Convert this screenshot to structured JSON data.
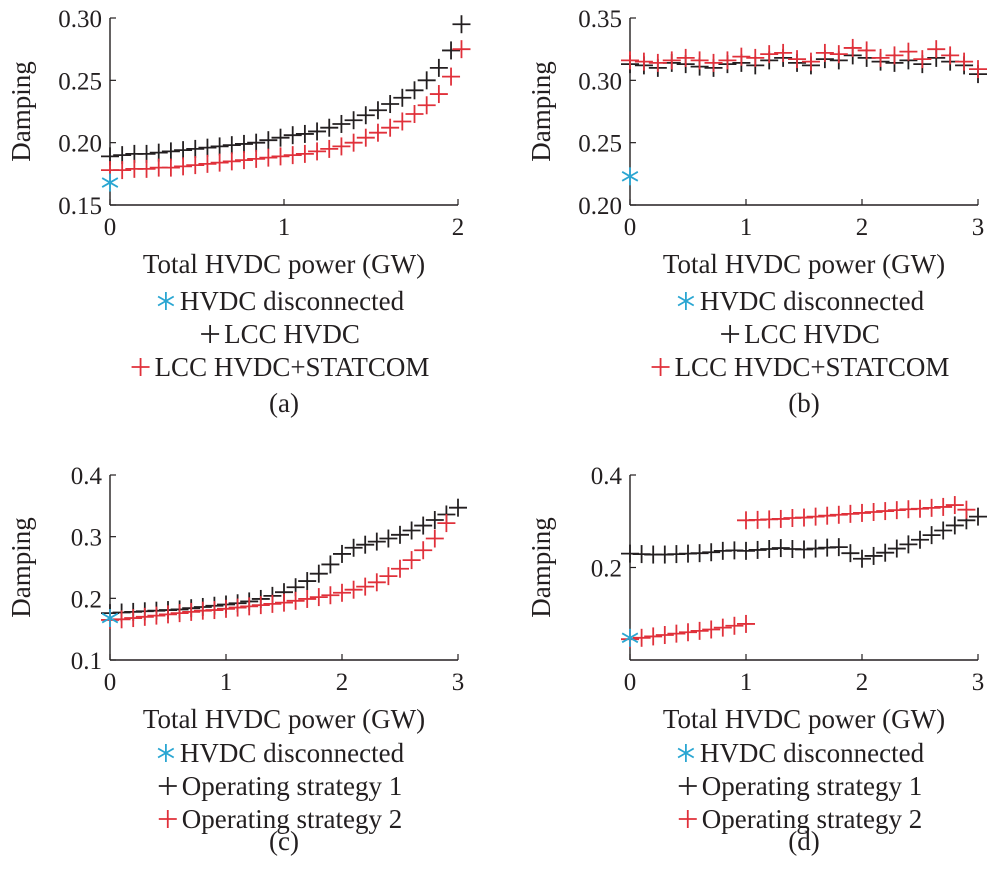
{
  "colors": {
    "black": "#231f20",
    "red": "#e0303a",
    "cyan": "#2aa6d2"
  },
  "chart_data": [
    {
      "panel": "a",
      "type": "scatter",
      "caption": "(a)",
      "xlabel": "Total HVDC power (GW)",
      "ylabel": "Damping",
      "xlim": [
        0,
        2
      ],
      "ylim": [
        0.15,
        0.3
      ],
      "xticks": [
        0,
        1,
        2
      ],
      "xtick_labels": [
        "0",
        "1",
        "2"
      ],
      "yticks": [
        0.15,
        0.2,
        0.25,
        0.3
      ],
      "ytick_labels": [
        "0.15",
        "0.20",
        "0.25",
        "0.30"
      ],
      "series": [
        {
          "name": "HVDC disconnected",
          "color": "cyan",
          "marker": "asterisk",
          "x": [
            0
          ],
          "y": [
            0.168
          ]
        },
        {
          "name": "LCC HVDC",
          "color": "black",
          "marker": "plus",
          "x": [
            0.0,
            0.07,
            0.14,
            0.21,
            0.28,
            0.35,
            0.42,
            0.49,
            0.56,
            0.63,
            0.7,
            0.77,
            0.84,
            0.91,
            0.98,
            1.05,
            1.12,
            1.19,
            1.26,
            1.33,
            1.4,
            1.47,
            1.54,
            1.61,
            1.68,
            1.75,
            1.82,
            1.89,
            1.96,
            2.02
          ],
          "y": [
            0.189,
            0.19,
            0.191,
            0.191,
            0.192,
            0.193,
            0.194,
            0.195,
            0.196,
            0.197,
            0.198,
            0.199,
            0.2,
            0.202,
            0.204,
            0.206,
            0.207,
            0.209,
            0.212,
            0.215,
            0.218,
            0.222,
            0.226,
            0.231,
            0.236,
            0.242,
            0.25,
            0.26,
            0.274,
            0.295
          ]
        },
        {
          "name": "LCC HVDC+STATCOM",
          "color": "red",
          "marker": "plus",
          "x": [
            0.0,
            0.07,
            0.14,
            0.21,
            0.28,
            0.35,
            0.42,
            0.49,
            0.56,
            0.63,
            0.7,
            0.77,
            0.84,
            0.91,
            0.98,
            1.05,
            1.12,
            1.19,
            1.26,
            1.33,
            1.4,
            1.47,
            1.54,
            1.61,
            1.68,
            1.75,
            1.82,
            1.89,
            1.96,
            2.02
          ],
          "y": [
            0.178,
            0.178,
            0.179,
            0.179,
            0.18,
            0.18,
            0.181,
            0.182,
            0.183,
            0.184,
            0.185,
            0.186,
            0.187,
            0.188,
            0.189,
            0.19,
            0.191,
            0.193,
            0.195,
            0.197,
            0.2,
            0.204,
            0.208,
            0.212,
            0.217,
            0.223,
            0.23,
            0.239,
            0.253,
            0.275
          ]
        }
      ],
      "legend": [
        "HVDC disconnected",
        "LCC HVDC",
        "LCC HVDC+STATCOM"
      ]
    },
    {
      "panel": "b",
      "type": "scatter",
      "caption": "(b)",
      "xlabel": "Total HVDC power (GW)",
      "ylabel": "Damping",
      "xlim": [
        0,
        3
      ],
      "ylim": [
        0.2,
        0.35
      ],
      "xticks": [
        0,
        1,
        2,
        3
      ],
      "xtick_labels": [
        "0",
        "1",
        "2",
        "3"
      ],
      "yticks": [
        0.2,
        0.25,
        0.3,
        0.35
      ],
      "ytick_labels": [
        "0.20",
        "0.25",
        "0.30",
        "0.35"
      ],
      "series": [
        {
          "name": "HVDC disconnected",
          "color": "cyan",
          "marker": "asterisk",
          "x": [
            0
          ],
          "y": [
            0.223
          ]
        },
        {
          "name": "LCC HVDC",
          "color": "black",
          "marker": "plus",
          "x": [
            0.0,
            0.12,
            0.24,
            0.36,
            0.48,
            0.6,
            0.72,
            0.84,
            0.96,
            1.08,
            1.2,
            1.32,
            1.44,
            1.56,
            1.68,
            1.8,
            1.92,
            2.04,
            2.16,
            2.28,
            2.4,
            2.52,
            2.64,
            2.76,
            2.88,
            3.0
          ],
          "y": [
            0.313,
            0.312,
            0.31,
            0.314,
            0.313,
            0.311,
            0.31,
            0.313,
            0.314,
            0.312,
            0.316,
            0.318,
            0.314,
            0.312,
            0.317,
            0.316,
            0.32,
            0.318,
            0.315,
            0.314,
            0.316,
            0.313,
            0.318,
            0.315,
            0.312,
            0.305
          ]
        },
        {
          "name": "LCC HVDC+STATCOM",
          "color": "red",
          "marker": "plus",
          "x": [
            0.0,
            0.12,
            0.24,
            0.36,
            0.48,
            0.6,
            0.72,
            0.84,
            0.96,
            1.08,
            1.2,
            1.32,
            1.44,
            1.56,
            1.68,
            1.8,
            1.92,
            2.04,
            2.16,
            2.28,
            2.4,
            2.52,
            2.64,
            2.76,
            2.88,
            3.0
          ],
          "y": [
            0.316,
            0.315,
            0.314,
            0.316,
            0.318,
            0.316,
            0.314,
            0.316,
            0.319,
            0.318,
            0.321,
            0.322,
            0.317,
            0.315,
            0.322,
            0.321,
            0.326,
            0.324,
            0.318,
            0.32,
            0.323,
            0.317,
            0.325,
            0.32,
            0.315,
            0.309
          ]
        }
      ],
      "legend": [
        "HVDC disconnected",
        "LCC HVDC",
        "LCC HVDC+STATCOM"
      ]
    },
    {
      "panel": "c",
      "type": "scatter",
      "caption": "(c)",
      "xlabel": "Total HVDC power (GW)",
      "ylabel": "Damping",
      "xlim": [
        0,
        3
      ],
      "ylim": [
        0.1,
        0.4
      ],
      "xticks": [
        0,
        1,
        2,
        3
      ],
      "xtick_labels": [
        "0",
        "1",
        "2",
        "3"
      ],
      "yticks": [
        0.1,
        0.2,
        0.3,
        0.4
      ],
      "ytick_labels": [
        "0.1",
        "0.2",
        "0.3",
        "0.4"
      ],
      "series": [
        {
          "name": "HVDC disconnected",
          "color": "cyan",
          "marker": "asterisk",
          "x": [
            0
          ],
          "y": [
            0.168
          ]
        },
        {
          "name": "Operating strategy 1",
          "color": "black",
          "marker": "plus",
          "x": [
            0.0,
            0.1,
            0.2,
            0.3,
            0.4,
            0.5,
            0.6,
            0.7,
            0.8,
            0.9,
            1.0,
            1.1,
            1.2,
            1.3,
            1.4,
            1.5,
            1.6,
            1.7,
            1.8,
            1.9,
            2.0,
            2.1,
            2.2,
            2.3,
            2.4,
            2.5,
            2.6,
            2.7,
            2.8,
            2.9,
            3.0
          ],
          "y": [
            0.176,
            0.177,
            0.178,
            0.179,
            0.18,
            0.181,
            0.182,
            0.184,
            0.186,
            0.188,
            0.19,
            0.192,
            0.195,
            0.199,
            0.204,
            0.21,
            0.218,
            0.228,
            0.24,
            0.255,
            0.272,
            0.282,
            0.287,
            0.292,
            0.297,
            0.303,
            0.31,
            0.318,
            0.327,
            0.336,
            0.347
          ]
        },
        {
          "name": "Operating strategy 2",
          "color": "red",
          "marker": "plus",
          "x": [
            0.0,
            0.1,
            0.2,
            0.3,
            0.4,
            0.5,
            0.6,
            0.7,
            0.8,
            0.9,
            1.0,
            1.1,
            1.2,
            1.3,
            1.4,
            1.5,
            1.6,
            1.7,
            1.8,
            1.9,
            2.0,
            2.1,
            2.2,
            2.3,
            2.4,
            2.5,
            2.6,
            2.7,
            2.8,
            2.9
          ],
          "y": [
            0.165,
            0.166,
            0.168,
            0.17,
            0.172,
            0.174,
            0.176,
            0.178,
            0.18,
            0.181,
            0.183,
            0.185,
            0.187,
            0.189,
            0.191,
            0.193,
            0.196,
            0.199,
            0.202,
            0.205,
            0.209,
            0.214,
            0.219,
            0.226,
            0.236,
            0.248,
            0.262,
            0.278,
            0.297,
            0.322
          ]
        }
      ],
      "legend": [
        "HVDC disconnected",
        "Operating strategy 1",
        "Operating strategy 2"
      ]
    },
    {
      "panel": "d",
      "type": "scatter",
      "caption": "(d)",
      "xlabel": "Total HVDC power (GW)",
      "ylabel": "Damping",
      "xlim": [
        0,
        3
      ],
      "ylim": [
        0.0,
        0.4
      ],
      "xticks": [
        0,
        1,
        2,
        3
      ],
      "xtick_labels": [
        "0",
        "1",
        "2",
        "3"
      ],
      "yticks": [
        0.2,
        0.4
      ],
      "ytick_labels": [
        "0.2",
        "0.4"
      ],
      "series": [
        {
          "name": "HVDC disconnected",
          "color": "cyan",
          "marker": "asterisk",
          "x": [
            0
          ],
          "y": [
            0.048
          ]
        },
        {
          "name": "Operating strategy 1",
          "color": "black",
          "marker": "plus",
          "x": [
            0.0,
            0.1,
            0.2,
            0.3,
            0.4,
            0.5,
            0.6,
            0.7,
            0.8,
            0.9,
            1.0,
            1.1,
            1.2,
            1.3,
            1.4,
            1.5,
            1.6,
            1.7,
            1.8,
            1.9,
            2.0,
            2.1,
            2.2,
            2.3,
            2.4,
            2.5,
            2.6,
            2.7,
            2.8,
            2.9,
            3.0
          ],
          "y": [
            0.23,
            0.229,
            0.228,
            0.228,
            0.229,
            0.23,
            0.231,
            0.233,
            0.236,
            0.237,
            0.236,
            0.238,
            0.24,
            0.242,
            0.24,
            0.239,
            0.241,
            0.243,
            0.244,
            0.231,
            0.219,
            0.225,
            0.232,
            0.241,
            0.25,
            0.26,
            0.27,
            0.28,
            0.291,
            0.302,
            0.31
          ]
        },
        {
          "name": "Operating strategy 2",
          "color": "red",
          "marker": "plus",
          "x": [
            0.0,
            0.1,
            0.2,
            0.3,
            0.4,
            0.5,
            0.6,
            0.7,
            0.8,
            0.9,
            1.0
          ],
          "y": [
            0.045,
            0.048,
            0.051,
            0.054,
            0.057,
            0.06,
            0.063,
            0.066,
            0.07,
            0.074,
            0.078
          ]
        },
        {
          "name": "Operating strategy 2",
          "color": "red",
          "marker": "plus",
          "x": [
            1.0,
            1.1,
            1.2,
            1.3,
            1.4,
            1.5,
            1.6,
            1.7,
            1.8,
            1.9,
            2.0,
            2.1,
            2.2,
            2.3,
            2.4,
            2.5,
            2.6,
            2.7,
            2.8,
            2.9
          ],
          "y": [
            0.302,
            0.303,
            0.304,
            0.305,
            0.307,
            0.308,
            0.31,
            0.312,
            0.314,
            0.316,
            0.318,
            0.32,
            0.322,
            0.324,
            0.326,
            0.327,
            0.329,
            0.331,
            0.335,
            0.325
          ]
        }
      ],
      "legend": [
        "HVDC disconnected",
        "Operating strategy 1",
        "Operating strategy 2"
      ]
    }
  ]
}
